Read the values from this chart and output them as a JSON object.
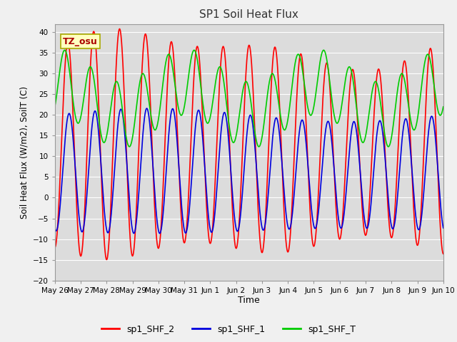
{
  "title": "SP1 Soil Heat Flux",
  "xlabel": "Time",
  "ylabel": "Soil Heat Flux (W/m2), SoilT (C)",
  "ylim": [
    -20,
    42
  ],
  "yticks": [
    -20,
    -15,
    -10,
    -5,
    0,
    5,
    10,
    15,
    20,
    25,
    30,
    35,
    40
  ],
  "x_tick_labels": [
    "May 26",
    "May 27",
    "May 28",
    "May 29",
    "May 30",
    "May 31",
    "Jun 1",
    "Jun 2",
    "Jun 3",
    "Jun 4",
    "Jun 5",
    "Jun 6",
    "Jun 7",
    "Jun 8",
    "Jun 9",
    "Jun 10"
  ],
  "x_tick_positions": [
    0,
    1,
    2,
    3,
    4,
    5,
    6,
    7,
    8,
    9,
    10,
    11,
    12,
    13,
    14,
    15
  ],
  "color_shf2": "#ff0000",
  "color_shf1": "#0000dd",
  "color_shft": "#00cc00",
  "linewidth": 1.2,
  "bg_color": "#dcdcdc",
  "legend_labels": [
    "sp1_SHF_2",
    "sp1_SHF_1",
    "sp1_SHF_T"
  ],
  "tz_label": "TZ_osu",
  "tz_text_color": "#aa0000",
  "tz_box_color": "#ffffc0",
  "tz_box_edge": "#aaaa00"
}
